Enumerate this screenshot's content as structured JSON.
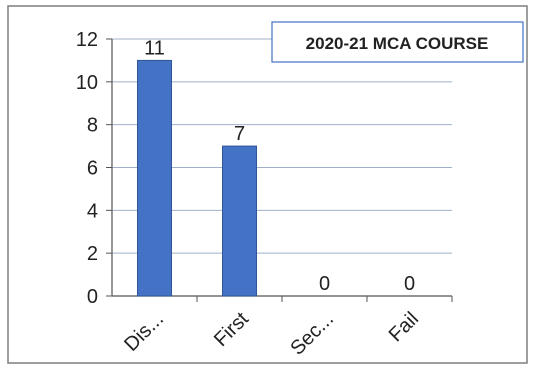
{
  "chart_data": {
    "type": "bar",
    "title": "2020-21 MCA COURSE",
    "categories": [
      "Dis...",
      "First",
      "Sec...",
      "Fail"
    ],
    "values": [
      11,
      7,
      0,
      0
    ],
    "ylim": [
      0,
      12
    ],
    "yticks": [
      0,
      2,
      4,
      6,
      8,
      10,
      12
    ],
    "grid": true,
    "xlabel": "",
    "ylabel": "",
    "colors": {
      "bar": "#4472c4",
      "bar_edge": "#2f5597",
      "gridline": "#9fb0c8",
      "axis": "#555555",
      "text": "#222222",
      "frame": "#7f7f7f",
      "title_box_border": "#4472c4"
    }
  }
}
